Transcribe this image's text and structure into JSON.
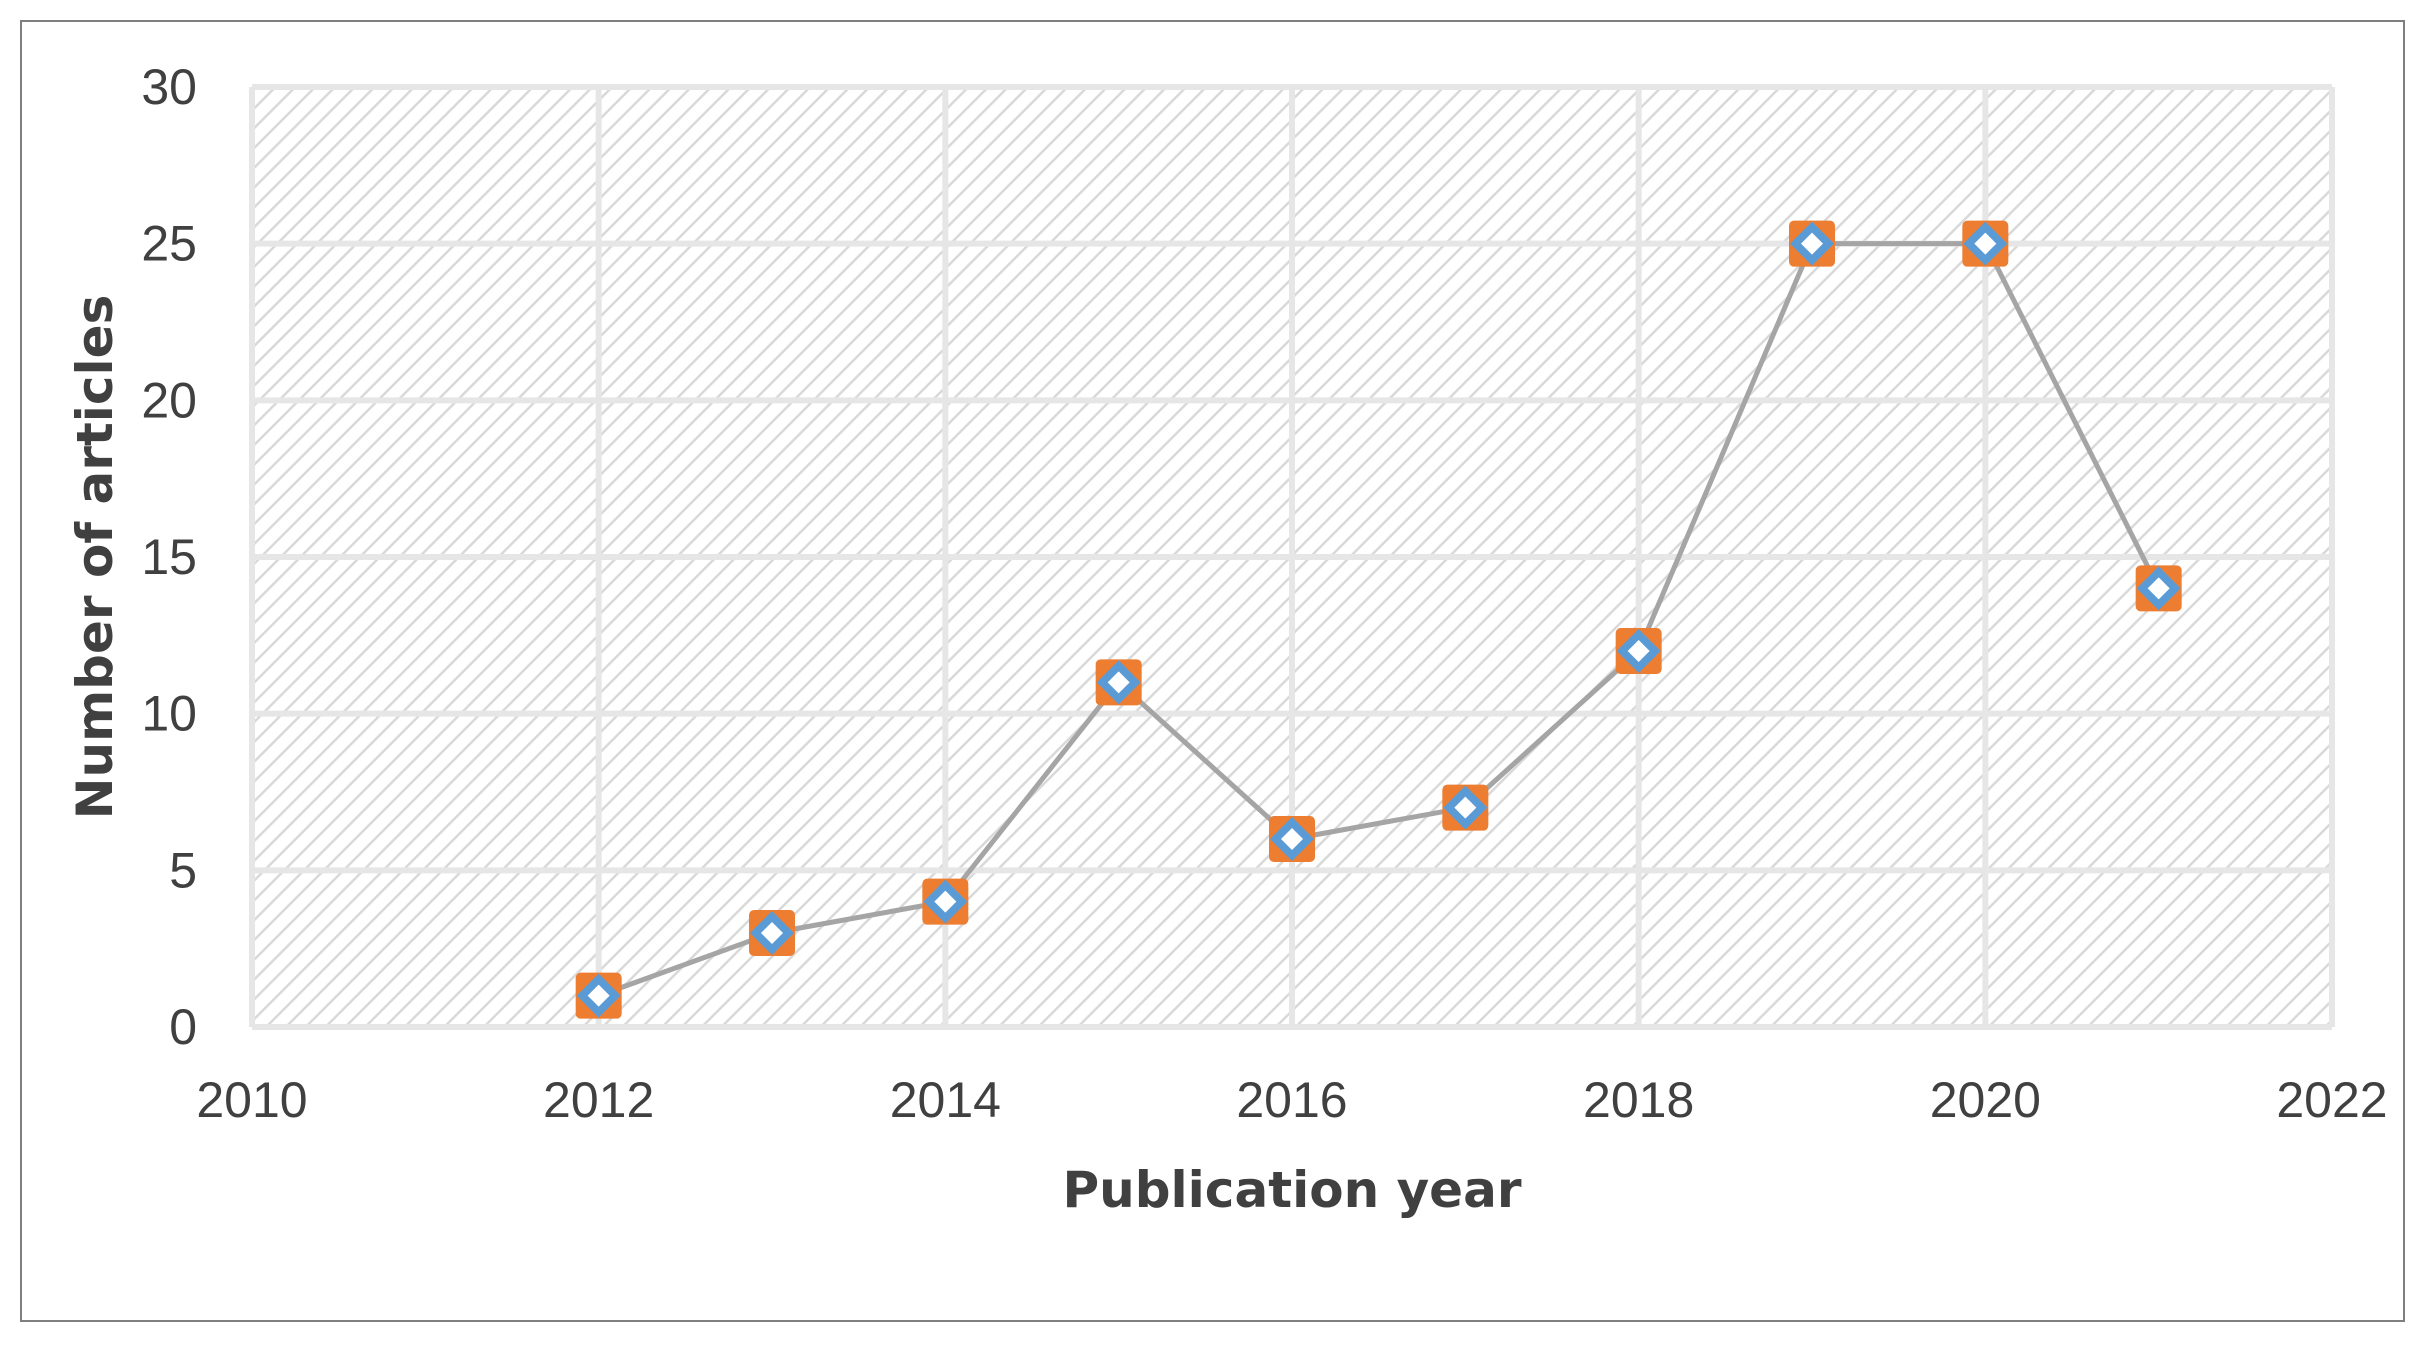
{
  "chart_data": {
    "type": "line",
    "title": "",
    "xlabel": "Publication year",
    "ylabel": "Number of articles",
    "xlim": [
      2010,
      2022
    ],
    "ylim": [
      0,
      30
    ],
    "x_ticks": [
      "2010",
      "2012",
      "2014",
      "2016",
      "2018",
      "2020",
      "2022"
    ],
    "y_ticks": [
      "0",
      "5",
      "10",
      "15",
      "20",
      "25",
      "30"
    ],
    "grid": true,
    "plot_background": "diagonal-hatch",
    "legend": "none",
    "series": [
      {
        "x": [
          2012,
          2013,
          2014,
          2015,
          2016,
          2017,
          2018,
          2019,
          2020,
          2021
        ],
        "y": [
          1,
          3,
          4,
          11,
          6,
          7,
          12,
          25,
          25,
          14
        ],
        "line_color": "#a5a5a5",
        "marker_outer_color": "#ed7d31",
        "marker_inner_color": "#5b9bd5"
      }
    ]
  }
}
